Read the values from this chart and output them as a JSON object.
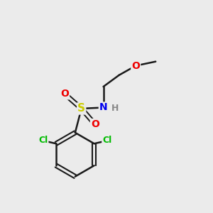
{
  "bg_color": "#ebebeb",
  "bond_color": "#1a1a1a",
  "atom_colors": {
    "Cl": "#00bb00",
    "S": "#cccc00",
    "N": "#0000ee",
    "O": "#ee0000",
    "H": "#888888"
  },
  "figsize": [
    3.0,
    3.0
  ],
  "dpi": 100
}
